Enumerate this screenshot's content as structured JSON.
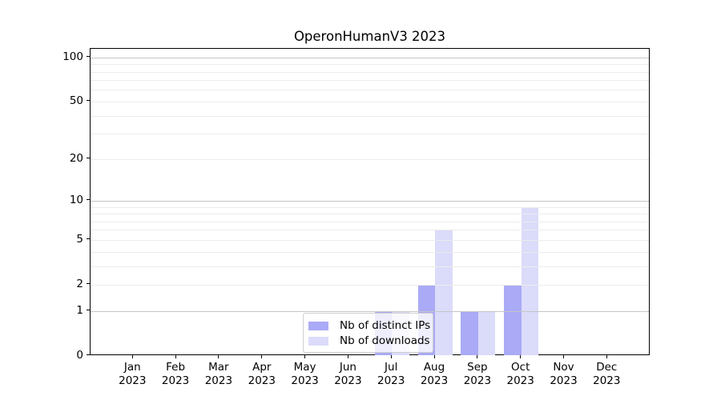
{
  "title": "OperonHumanV3 2023",
  "chart_data": {
    "type": "bar",
    "title": "OperonHumanV3 2023",
    "categories": [
      "Jan 2023",
      "Feb 2023",
      "Mar 2023",
      "Apr 2023",
      "May 2023",
      "Jun 2023",
      "Jul 2023",
      "Aug 2023",
      "Sep 2023",
      "Oct 2023",
      "Nov 2023",
      "Dec 2023"
    ],
    "series": [
      {
        "name": "Nb of distinct IPs",
        "color": "#aaaaf6",
        "values": [
          0,
          0,
          0,
          0,
          0,
          0,
          1,
          2,
          1,
          2,
          0,
          0
        ]
      },
      {
        "name": "Nb of downloads",
        "color": "#dbdbfa",
        "values": [
          0,
          0,
          0,
          0,
          0,
          0,
          1,
          6,
          1,
          9,
          0,
          0
        ]
      }
    ],
    "xlabel": "",
    "ylabel": "",
    "yscale": "log1p",
    "ylim": [
      0,
      115
    ],
    "y_tick_labels": [
      "0",
      "1",
      "2",
      "5",
      "10",
      "20",
      "50",
      "100"
    ],
    "y_tick_values": [
      0,
      1,
      2,
      5,
      10,
      20,
      50,
      100
    ],
    "y_major_gridlines": [
      1,
      10,
      100
    ],
    "y_minor_gridlines": [
      2,
      3,
      4,
      5,
      6,
      7,
      8,
      9,
      20,
      30,
      40,
      50,
      60,
      70,
      80,
      90
    ],
    "grid": true,
    "legend_position": "lower center"
  },
  "legend": {
    "items": [
      {
        "label": "Nb of distinct IPs",
        "color": "#aaaaf6"
      },
      {
        "label": "Nb of downloads",
        "color": "#dbdbfa"
      }
    ]
  },
  "colors": {
    "bar_distinct_ips": "#aaaaf6",
    "bar_downloads": "#dbdbfa",
    "grid_major": "#c6c6c6",
    "grid_minor": "#ececec",
    "axis": "#000000",
    "background": "#ffffff"
  }
}
